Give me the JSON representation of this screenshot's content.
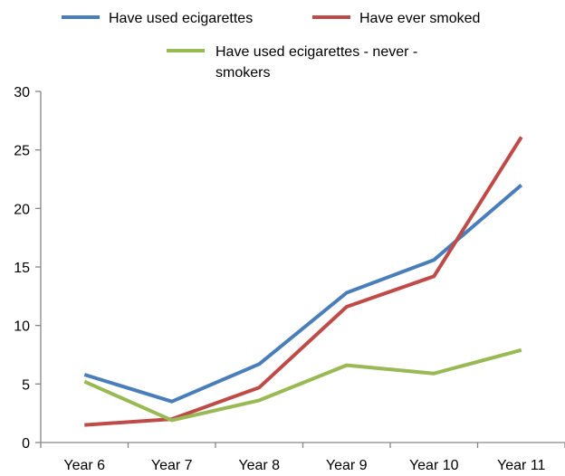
{
  "chart_data": {
    "type": "line",
    "categories": [
      "Year 6",
      "Year 7",
      "Year 8",
      "Year 9",
      "Year 10",
      "Year 11"
    ],
    "ylim": [
      0,
      30
    ],
    "yticks": [
      0,
      5,
      10,
      15,
      20,
      25,
      30
    ],
    "grid": false,
    "legend_position": "top",
    "series": [
      {
        "name": "Have used ecigarettes",
        "color": "#4a7ebb",
        "values": [
          5.8,
          3.5,
          6.7,
          12.8,
          15.6,
          22.0
        ]
      },
      {
        "name": "Have ever smoked",
        "color": "#be4b48",
        "values": [
          1.5,
          2.0,
          4.7,
          11.6,
          14.2,
          26.1
        ]
      },
      {
        "name_lines": [
          "Have used ecigarettes - never -",
          "smokers"
        ],
        "color": "#98b954",
        "values": [
          5.2,
          1.9,
          3.6,
          6.6,
          5.9,
          7.9
        ]
      }
    ]
  }
}
